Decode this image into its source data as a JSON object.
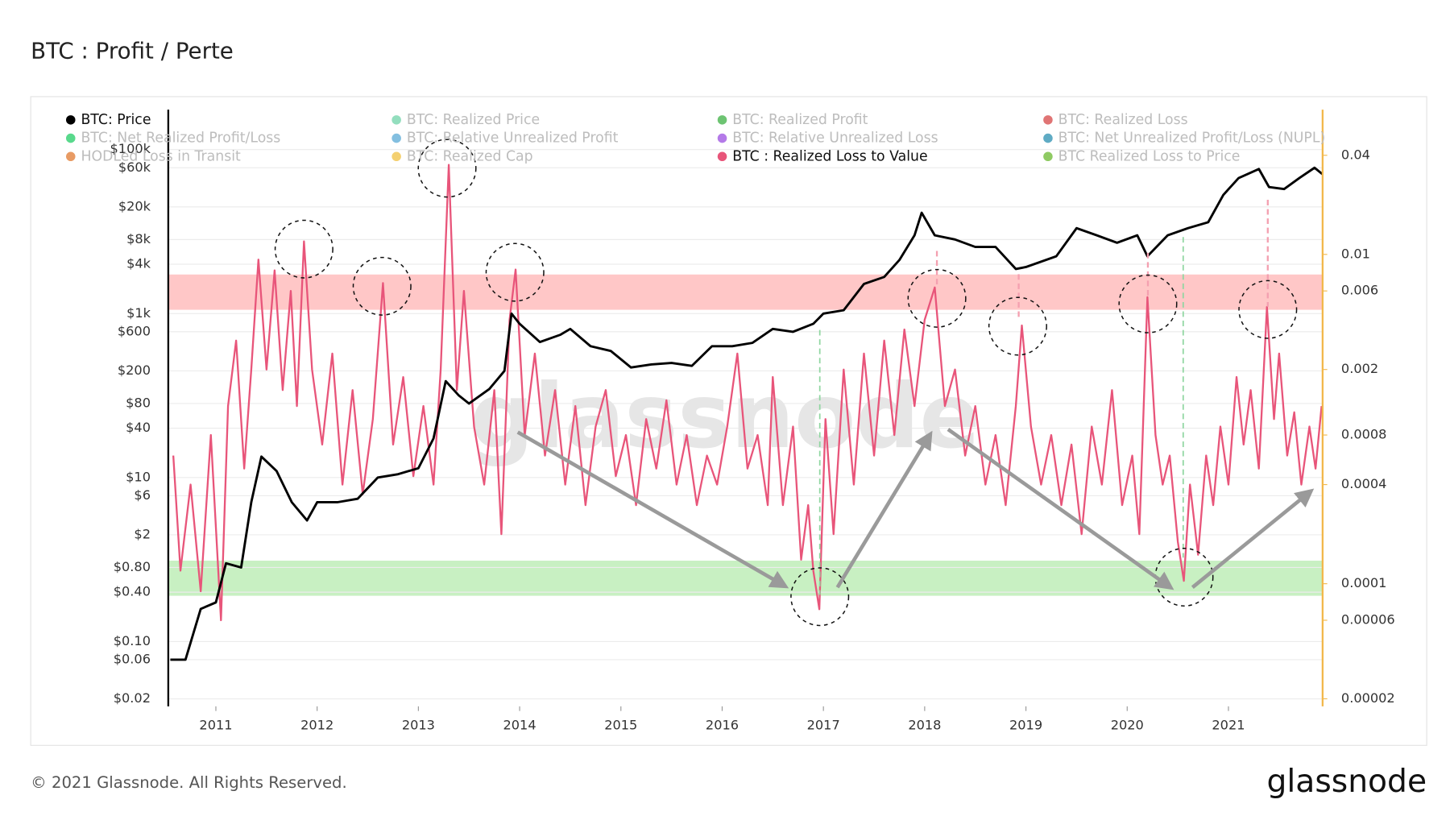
{
  "title": "BTC : Profit / Perte",
  "footer": "© 2021 Glassnode. All Rights Reserved.",
  "logo": "glassnode",
  "chart_data": {
    "type": "line",
    "watermark": "glassnode",
    "xlim": [
      2010.53,
      2021.93
    ],
    "xticks": [
      2011,
      2012,
      2013,
      2014,
      2015,
      2016,
      2017,
      2018,
      2019,
      2020,
      2021
    ],
    "ylim": [
      0.0162,
      307000
    ],
    "log_y": true,
    "yticks": [
      {
        "value": 100000,
        "label": "$100k"
      },
      {
        "value": 60000,
        "label": "$60k"
      },
      {
        "value": 20000,
        "label": "$20k"
      },
      {
        "value": 8000,
        "label": "$8k"
      },
      {
        "value": 4000,
        "label": "$4k"
      },
      {
        "value": 1000,
        "label": "$1k"
      },
      {
        "value": 600,
        "label": "$600"
      },
      {
        "value": 200,
        "label": "$200"
      },
      {
        "value": 80,
        "label": "$80"
      },
      {
        "value": 40,
        "label": "$40"
      },
      {
        "value": 10,
        "label": "$10"
      },
      {
        "value": 6,
        "label": "$6"
      },
      {
        "value": 2,
        "label": "$2"
      },
      {
        "value": 0.8,
        "label": "$0.80"
      },
      {
        "value": 0.4,
        "label": "$0.40"
      },
      {
        "value": 0.1,
        "label": "$0.10"
      },
      {
        "value": 0.06,
        "label": "$0.06"
      },
      {
        "value": 0.02,
        "label": "$0.02"
      }
    ],
    "y2lim": [
      1.8e-05,
      0.0757
    ],
    "log_y2": true,
    "y2ticks": [
      0.04,
      0.01,
      0.006,
      0.002,
      0.0008,
      0.0004,
      0.0001,
      6e-05,
      2e-05
    ],
    "y2_axis_color": "#f2b84b",
    "grid": true,
    "bands": [
      {
        "axis": "y2",
        "range": [
          0.00461,
          0.00755
        ],
        "color": "#ff9999"
      },
      {
        "axis": "y2",
        "range": [
          8.45e-05,
          0.000138
        ],
        "color": "#9be38f"
      }
    ],
    "series": [
      {
        "name": "BTC: Price",
        "color": "#000000",
        "visible": true,
        "axis": "y",
        "x": [
          2010.55,
          2010.7,
          2010.85,
          2011.0,
          2011.1,
          2011.25,
          2011.35,
          2011.45,
          2011.6,
          2011.75,
          2011.9,
          2012.0,
          2012.2,
          2012.4,
          2012.6,
          2012.8,
          2013.0,
          2013.15,
          2013.27,
          2013.4,
          2013.5,
          2013.7,
          2013.85,
          2013.92,
          2014.0,
          2014.2,
          2014.4,
          2014.5,
          2014.7,
          2014.9,
          2015.1,
          2015.3,
          2015.5,
          2015.7,
          2015.9,
          2016.1,
          2016.3,
          2016.5,
          2016.7,
          2016.9,
          2017.0,
          2017.2,
          2017.4,
          2017.6,
          2017.75,
          2017.9,
          2017.97,
          2018.1,
          2018.3,
          2018.5,
          2018.7,
          2018.9,
          2019.0,
          2019.3,
          2019.5,
          2019.7,
          2019.9,
          2020.1,
          2020.2,
          2020.4,
          2020.6,
          2020.8,
          2020.95,
          2021.1,
          2021.3,
          2021.4,
          2021.55,
          2021.7,
          2021.85,
          2021.93
        ],
        "values": [
          0.06,
          0.06,
          0.25,
          0.3,
          0.9,
          0.8,
          5,
          18,
          12,
          5,
          3,
          5,
          5,
          5.5,
          10,
          11,
          13,
          30,
          150,
          100,
          80,
          120,
          200,
          1000,
          750,
          450,
          550,
          650,
          400,
          350,
          220,
          240,
          250,
          230,
          400,
          400,
          440,
          650,
          600,
          750,
          1000,
          1100,
          2300,
          2800,
          4500,
          9000,
          17000,
          9000,
          8000,
          6500,
          6500,
          3500,
          3700,
          5000,
          11000,
          9000,
          7300,
          9000,
          5000,
          9000,
          11000,
          13000,
          28000,
          45000,
          58000,
          35000,
          33000,
          45000,
          60000,
          50000
        ]
      },
      {
        "name": "BTC: Realized Price",
        "color": "#6fd3a8",
        "visible": false
      },
      {
        "name": "BTC: Realized Profit",
        "color": "#3cb043",
        "visible": false
      },
      {
        "name": "BTC: Realized Loss",
        "color": "#d64545",
        "visible": false
      },
      {
        "name": "BTC: Net Realized Profit/Loss",
        "color": "#22cc66",
        "visible": false
      },
      {
        "name": "BTC: Relative Unrealized Profit",
        "color": "#5aa9d6",
        "visible": false
      },
      {
        "name": "BTC: Relative Unrealized Loss",
        "color": "#9b4de0",
        "visible": false
      },
      {
        "name": "BTC: Net Unrealized Profit/Loss (NUPL)",
        "color": "#2a8fb0",
        "visible": false
      },
      {
        "name": "HODLed Loss in Transit",
        "color": "#e07a30",
        "visible": false
      },
      {
        "name": "BTC: Realized Cap",
        "color": "#f0c040",
        "visible": false
      },
      {
        "name": "BTC : Realized Loss to Value",
        "color": "#e8557a",
        "visible": true,
        "axis": "y2",
        "x": [
          2010.58,
          2010.65,
          2010.75,
          2010.85,
          2010.95,
          2011.05,
          2011.12,
          2011.2,
          2011.28,
          2011.35,
          2011.42,
          2011.5,
          2011.58,
          2011.66,
          2011.74,
          2011.8,
          2011.87,
          2011.95,
          2012.05,
          2012.15,
          2012.25,
          2012.35,
          2012.45,
          2012.55,
          2012.65,
          2012.75,
          2012.85,
          2012.95,
          2013.05,
          2013.15,
          2013.22,
          2013.3,
          2013.38,
          2013.45,
          2013.55,
          2013.65,
          2013.75,
          2013.82,
          2013.9,
          2013.96,
          2014.05,
          2014.15,
          2014.25,
          2014.35,
          2014.45,
          2014.55,
          2014.65,
          2014.75,
          2014.85,
          2014.95,
          2015.05,
          2015.15,
          2015.25,
          2015.35,
          2015.45,
          2015.55,
          2015.65,
          2015.75,
          2015.85,
          2015.95,
          2016.05,
          2016.15,
          2016.25,
          2016.35,
          2016.45,
          2016.5,
          2016.6,
          2016.7,
          2016.78,
          2016.85,
          2016.9,
          2016.96,
          2017.02,
          2017.1,
          2017.2,
          2017.3,
          2017.4,
          2017.5,
          2017.6,
          2017.7,
          2017.8,
          2017.9,
          2018.0,
          2018.1,
          2018.2,
          2018.3,
          2018.4,
          2018.5,
          2018.6,
          2018.7,
          2018.8,
          2018.9,
          2018.96,
          2019.05,
          2019.15,
          2019.25,
          2019.35,
          2019.45,
          2019.55,
          2019.65,
          2019.75,
          2019.85,
          2019.95,
          2020.05,
          2020.12,
          2020.2,
          2020.28,
          2020.35,
          2020.42,
          2020.5,
          2020.56,
          2020.62,
          2020.7,
          2020.78,
          2020.85,
          2020.92,
          2021.0,
          2021.08,
          2021.15,
          2021.22,
          2021.3,
          2021.38,
          2021.45,
          2021.5,
          2021.58,
          2021.65,
          2021.72,
          2021.8,
          2021.86,
          2021.92
        ],
        "values": [
          0.0006,
          0.00012,
          0.0004,
          9e-05,
          0.0008,
          6e-05,
          0.0012,
          0.003,
          0.0005,
          0.002,
          0.0093,
          0.002,
          0.008,
          0.0015,
          0.006,
          0.0012,
          0.012,
          0.002,
          0.0007,
          0.0025,
          0.0004,
          0.0015,
          0.00035,
          0.001,
          0.0067,
          0.0007,
          0.0018,
          0.00045,
          0.0012,
          0.0004,
          0.002,
          0.035,
          0.0015,
          0.006,
          0.0009,
          0.0004,
          0.0015,
          0.0002,
          0.004,
          0.0081,
          0.0008,
          0.0025,
          0.0006,
          0.0015,
          0.0004,
          0.0012,
          0.0003,
          0.0009,
          0.0015,
          0.00045,
          0.0008,
          0.0003,
          0.001,
          0.0005,
          0.0013,
          0.0004,
          0.0008,
          0.0003,
          0.0006,
          0.0004,
          0.0009,
          0.0025,
          0.0005,
          0.0008,
          0.0003,
          0.0018,
          0.0003,
          0.0009,
          0.00014,
          0.0003,
          0.00012,
          7e-05,
          0.001,
          0.0002,
          0.002,
          0.0004,
          0.0025,
          0.0006,
          0.003,
          0.0008,
          0.0035,
          0.0012,
          0.004,
          0.0063,
          0.0012,
          0.002,
          0.0006,
          0.0012,
          0.0004,
          0.0008,
          0.0003,
          0.0012,
          0.0037,
          0.0009,
          0.0004,
          0.0008,
          0.0003,
          0.0007,
          0.0002,
          0.0009,
          0.0004,
          0.0015,
          0.0003,
          0.0006,
          0.0002,
          0.0055,
          0.0008,
          0.0004,
          0.0006,
          0.00018,
          0.000104,
          0.0004,
          0.00015,
          0.0006,
          0.0003,
          0.0009,
          0.0004,
          0.0018,
          0.0007,
          0.0015,
          0.0005,
          0.0048,
          0.001,
          0.0025,
          0.0006,
          0.0011,
          0.0004,
          0.0009,
          0.0005,
          0.0012
        ]
      },
      {
        "name": "BTC Realized Loss to Price",
        "color": "#6ab82f",
        "visible": false
      }
    ]
  }
}
